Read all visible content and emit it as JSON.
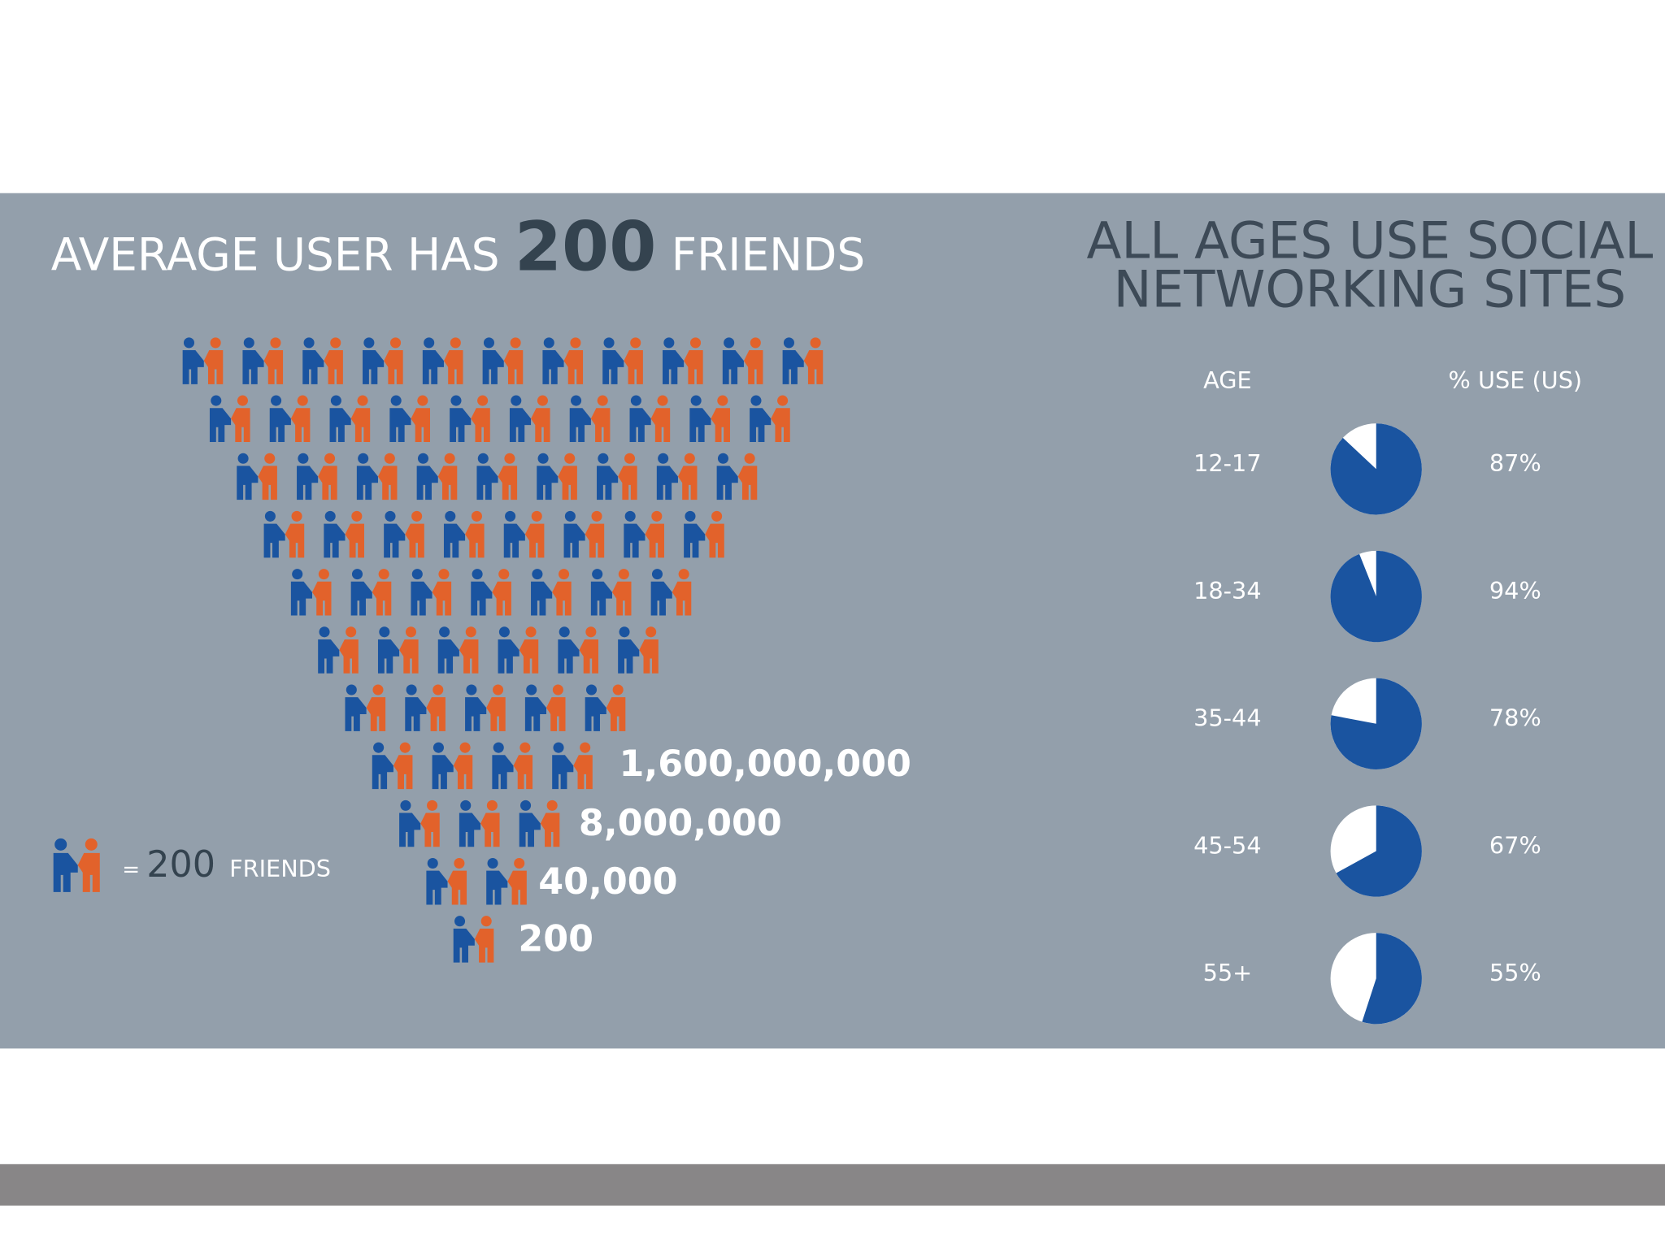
{
  "left": {
    "title_prefix": "AVERAGE USER HAS",
    "title_number": "200",
    "title_suffix": "FRIENDS",
    "totals": [
      "1,600,000,000",
      "8,000,000",
      "40,000",
      "200"
    ],
    "legend": {
      "equals": "=",
      "number": "200",
      "text": "FRIENDS"
    }
  },
  "right": {
    "title_lines": [
      "ALL AGES USE SOCIAL",
      "NETWORKING SITES"
    ],
    "header_age": "AGE",
    "header_use": "% USE (US)",
    "rows": [
      {
        "age": "12-17",
        "use": 87,
        "use_label": "87%"
      },
      {
        "age": "18-34",
        "use": 94,
        "use_label": "94%"
      },
      {
        "age": "35-44",
        "use": 78,
        "use_label": "78%"
      },
      {
        "age": "45-54",
        "use": 67,
        "use_label": "67%"
      },
      {
        "age": "55+",
        "use": 55,
        "use_label": "55%"
      }
    ]
  }
}
